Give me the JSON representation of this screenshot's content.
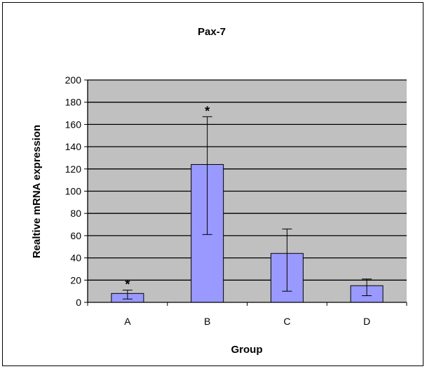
{
  "chart_data": {
    "type": "bar",
    "title": "Pax-7",
    "xlabel": "Group",
    "ylabel": "Realtive mRNA expression",
    "categories": [
      "A",
      "B",
      "C",
      "D"
    ],
    "values": [
      8,
      124,
      44,
      15
    ],
    "error_high": [
      11,
      167,
      66,
      21
    ],
    "error_low": [
      3,
      61,
      10,
      6
    ],
    "significance": [
      "*",
      "*",
      "",
      ""
    ],
    "ylim": [
      0,
      200
    ],
    "yticks": [
      "0",
      "20",
      "40",
      "60",
      "80",
      "100",
      "120",
      "140",
      "160",
      "180",
      "200"
    ],
    "grid": true,
    "colors": {
      "bar_fill": "#9999ff",
      "bar_stroke": "#000000",
      "plot_background": "#c0c0c0",
      "gridline": "#000000"
    }
  }
}
